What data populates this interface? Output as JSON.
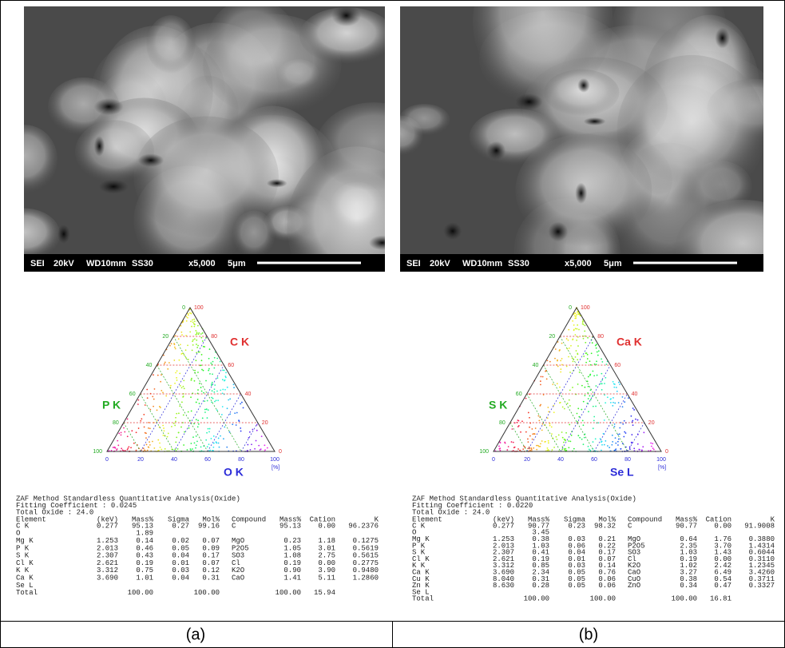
{
  "panels": [
    {
      "image": {
        "info": [
          "SEI",
          "20kV",
          "WD10mm",
          "SS30",
          "x5,000",
          "5μm"
        ]
      },
      "ternary": {
        "top_label": "C K",
        "left_label": "P K",
        "bottom_label": "O K",
        "unit": "[%]",
        "ticks": [
          0,
          20,
          40,
          60,
          80,
          100
        ]
      },
      "report": {
        "lines": [
          "ZAF Method Standardless Quantitative Analysis(Oxide)",
          "Fitting Coefficient : 0.0245",
          "Total Oxide : 24.0"
        ],
        "columns": [
          "Element",
          "(keV)",
          "Mass%",
          "Sigma",
          "Mol%",
          "Compound",
          "Mass%",
          "Cation",
          "K"
        ],
        "rows": [
          [
            "C K",
            "0.277",
            "95.13",
            "0.27",
            "99.16",
            "C",
            "95.13",
            "0.00",
            "96.2376"
          ],
          [
            "O",
            null,
            "1.89",
            null,
            null,
            null,
            null,
            null,
            null
          ],
          [
            "Mg K",
            "1.253",
            "0.14",
            "0.02",
            "0.07",
            "MgO",
            "0.23",
            "1.18",
            "0.1275"
          ],
          [
            "P K",
            "2.013",
            "0.46",
            "0.05",
            "0.09",
            "P2O5",
            "1.05",
            "3.01",
            "0.5619"
          ],
          [
            "S K",
            "2.307",
            "0.43",
            "0.04",
            "0.17",
            "SO3",
            "1.08",
            "2.75",
            "0.5615"
          ],
          [
            "Cl K",
            "2.621",
            "0.19",
            "0.01",
            "0.07",
            "Cl",
            "0.19",
            "0.00",
            "0.2775"
          ],
          [
            "K K",
            "3.312",
            "0.75",
            "0.03",
            "0.12",
            "K2O",
            "0.90",
            "3.90",
            "0.9480"
          ],
          [
            "Ca K",
            "3.690",
            "1.01",
            "0.04",
            "0.31",
            "CaO",
            "1.41",
            "5.11",
            "1.2860"
          ],
          [
            "Se L",
            null,
            null,
            null,
            null,
            null,
            null,
            null,
            null
          ],
          [
            "Total",
            null,
            "100.00",
            null,
            "100.00",
            null,
            "100.00",
            "15.94",
            null
          ]
        ]
      },
      "caption": "(a)"
    },
    {
      "image": {
        "info": [
          "SEI",
          "20kV",
          "WD10mm",
          "SS30",
          "x5,000",
          "5μm"
        ]
      },
      "ternary": {
        "top_label": "Ca K",
        "left_label": "S K",
        "bottom_label": "Se L",
        "unit": "[%]",
        "ticks": [
          0,
          20,
          40,
          60,
          80,
          100
        ]
      },
      "report": {
        "lines": [
          "ZAF Method Standardless Quantitative Analysis(Oxide)",
          "Fitting Coefficient : 0.0220",
          "Total Oxide : 24.0"
        ],
        "columns": [
          "Element",
          "(keV)",
          "Mass%",
          "Sigma",
          "Mol%",
          "Compound",
          "Mass%",
          "Cation",
          "K"
        ],
        "rows": [
          [
            "C K",
            "0.277",
            "90.77",
            "0.23",
            "98.32",
            "C",
            "90.77",
            "0.00",
            "91.9008"
          ],
          [
            "O",
            null,
            "3.45",
            null,
            null,
            null,
            null,
            null,
            null
          ],
          [
            "Mg K",
            "1.253",
            "0.38",
            "0.03",
            "0.21",
            "MgO",
            "0.64",
            "1.76",
            "0.3880"
          ],
          [
            "P K",
            "2.013",
            "1.03",
            "0.06",
            "0.22",
            "P2O5",
            "2.35",
            "3.70",
            "1.4314"
          ],
          [
            "S K",
            "2.307",
            "0.41",
            "0.04",
            "0.17",
            "SO3",
            "1.03",
            "1.43",
            "0.6044"
          ],
          [
            "Cl K",
            "2.621",
            "0.19",
            "0.01",
            "0.07",
            "Cl",
            "0.19",
            "0.00",
            "0.3110"
          ],
          [
            "K K",
            "3.312",
            "0.85",
            "0.03",
            "0.14",
            "K2O",
            "1.02",
            "2.42",
            "1.2345"
          ],
          [
            "Ca K",
            "3.690",
            "2.34",
            "0.05",
            "0.76",
            "CaO",
            "3.27",
            "6.49",
            "3.4260"
          ],
          [
            "Cu K",
            "8.040",
            "0.31",
            "0.05",
            "0.06",
            "CuO",
            "0.38",
            "0.54",
            "0.3711"
          ],
          [
            "Zn K",
            "8.630",
            "0.28",
            "0.05",
            "0.06",
            "ZnO",
            "0.34",
            "0.47",
            "0.3327"
          ],
          [
            "Se L",
            null,
            null,
            null,
            null,
            null,
            null,
            null,
            null
          ],
          [
            "Total",
            null,
            "100.00",
            null,
            "100.00",
            null,
            "100.00",
            "16.81",
            null
          ]
        ]
      },
      "caption": "(b)"
    }
  ]
}
